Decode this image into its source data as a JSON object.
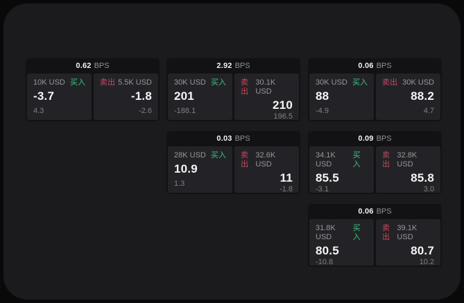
{
  "colors": {
    "page_background": "#09090a",
    "surface_background": "#1b1b1d",
    "card_background": "#121214",
    "tile_background": "#232327",
    "buy_green": "#3bc47f",
    "sell_red": "#c9475d",
    "text_primary": "#f5f5f6",
    "text_secondary": "#98989b",
    "text_muted": "#808084"
  },
  "cards": [
    {
      "bps": "0.62",
      "unit": "BPS",
      "buy": {
        "amount": "10K USD",
        "label": "买入",
        "value": "-3.7",
        "delta": "4.3"
      },
      "sell": {
        "label": "卖出",
        "amount": "5.5K USD",
        "value": "-1.8",
        "delta": "-2.6"
      }
    },
    {
      "bps": "2.92",
      "unit": "BPS",
      "buy": {
        "amount": "30K USD",
        "label": "买入",
        "value": "201",
        "delta": "-188.1"
      },
      "sell": {
        "label": "卖出",
        "amount": "30.1K USD",
        "value": "210",
        "delta": "196.5"
      }
    },
    {
      "bps": "0.06",
      "unit": "BPS",
      "buy": {
        "amount": "30K USD",
        "label": "买入",
        "value": "88",
        "delta": "-4.9"
      },
      "sell": {
        "label": "卖出",
        "amount": "30K USD",
        "value": "88.2",
        "delta": "4.7"
      }
    },
    {
      "bps": "0.03",
      "unit": "BPS",
      "buy": {
        "amount": "28K USD",
        "label": "买入",
        "value": "10.9",
        "delta": "1.3"
      },
      "sell": {
        "label": "卖出",
        "amount": "32.6K USD",
        "value": "11",
        "delta": "-1.8"
      }
    },
    {
      "bps": "0.09",
      "unit": "BPS",
      "buy": {
        "amount": "34.1K USD",
        "label": "买入",
        "value": "85.5",
        "delta": "-3.1"
      },
      "sell": {
        "label": "卖出",
        "amount": "32.8K USD",
        "value": "85.8",
        "delta": "3.0"
      }
    },
    {
      "bps": "0.06",
      "unit": "BPS",
      "buy": {
        "amount": "31.8K USD",
        "label": "买入",
        "value": "80.5",
        "delta": "-10.8"
      },
      "sell": {
        "label": "卖出",
        "amount": "39.1K USD",
        "value": "80.7",
        "delta": "10.2"
      }
    }
  ]
}
